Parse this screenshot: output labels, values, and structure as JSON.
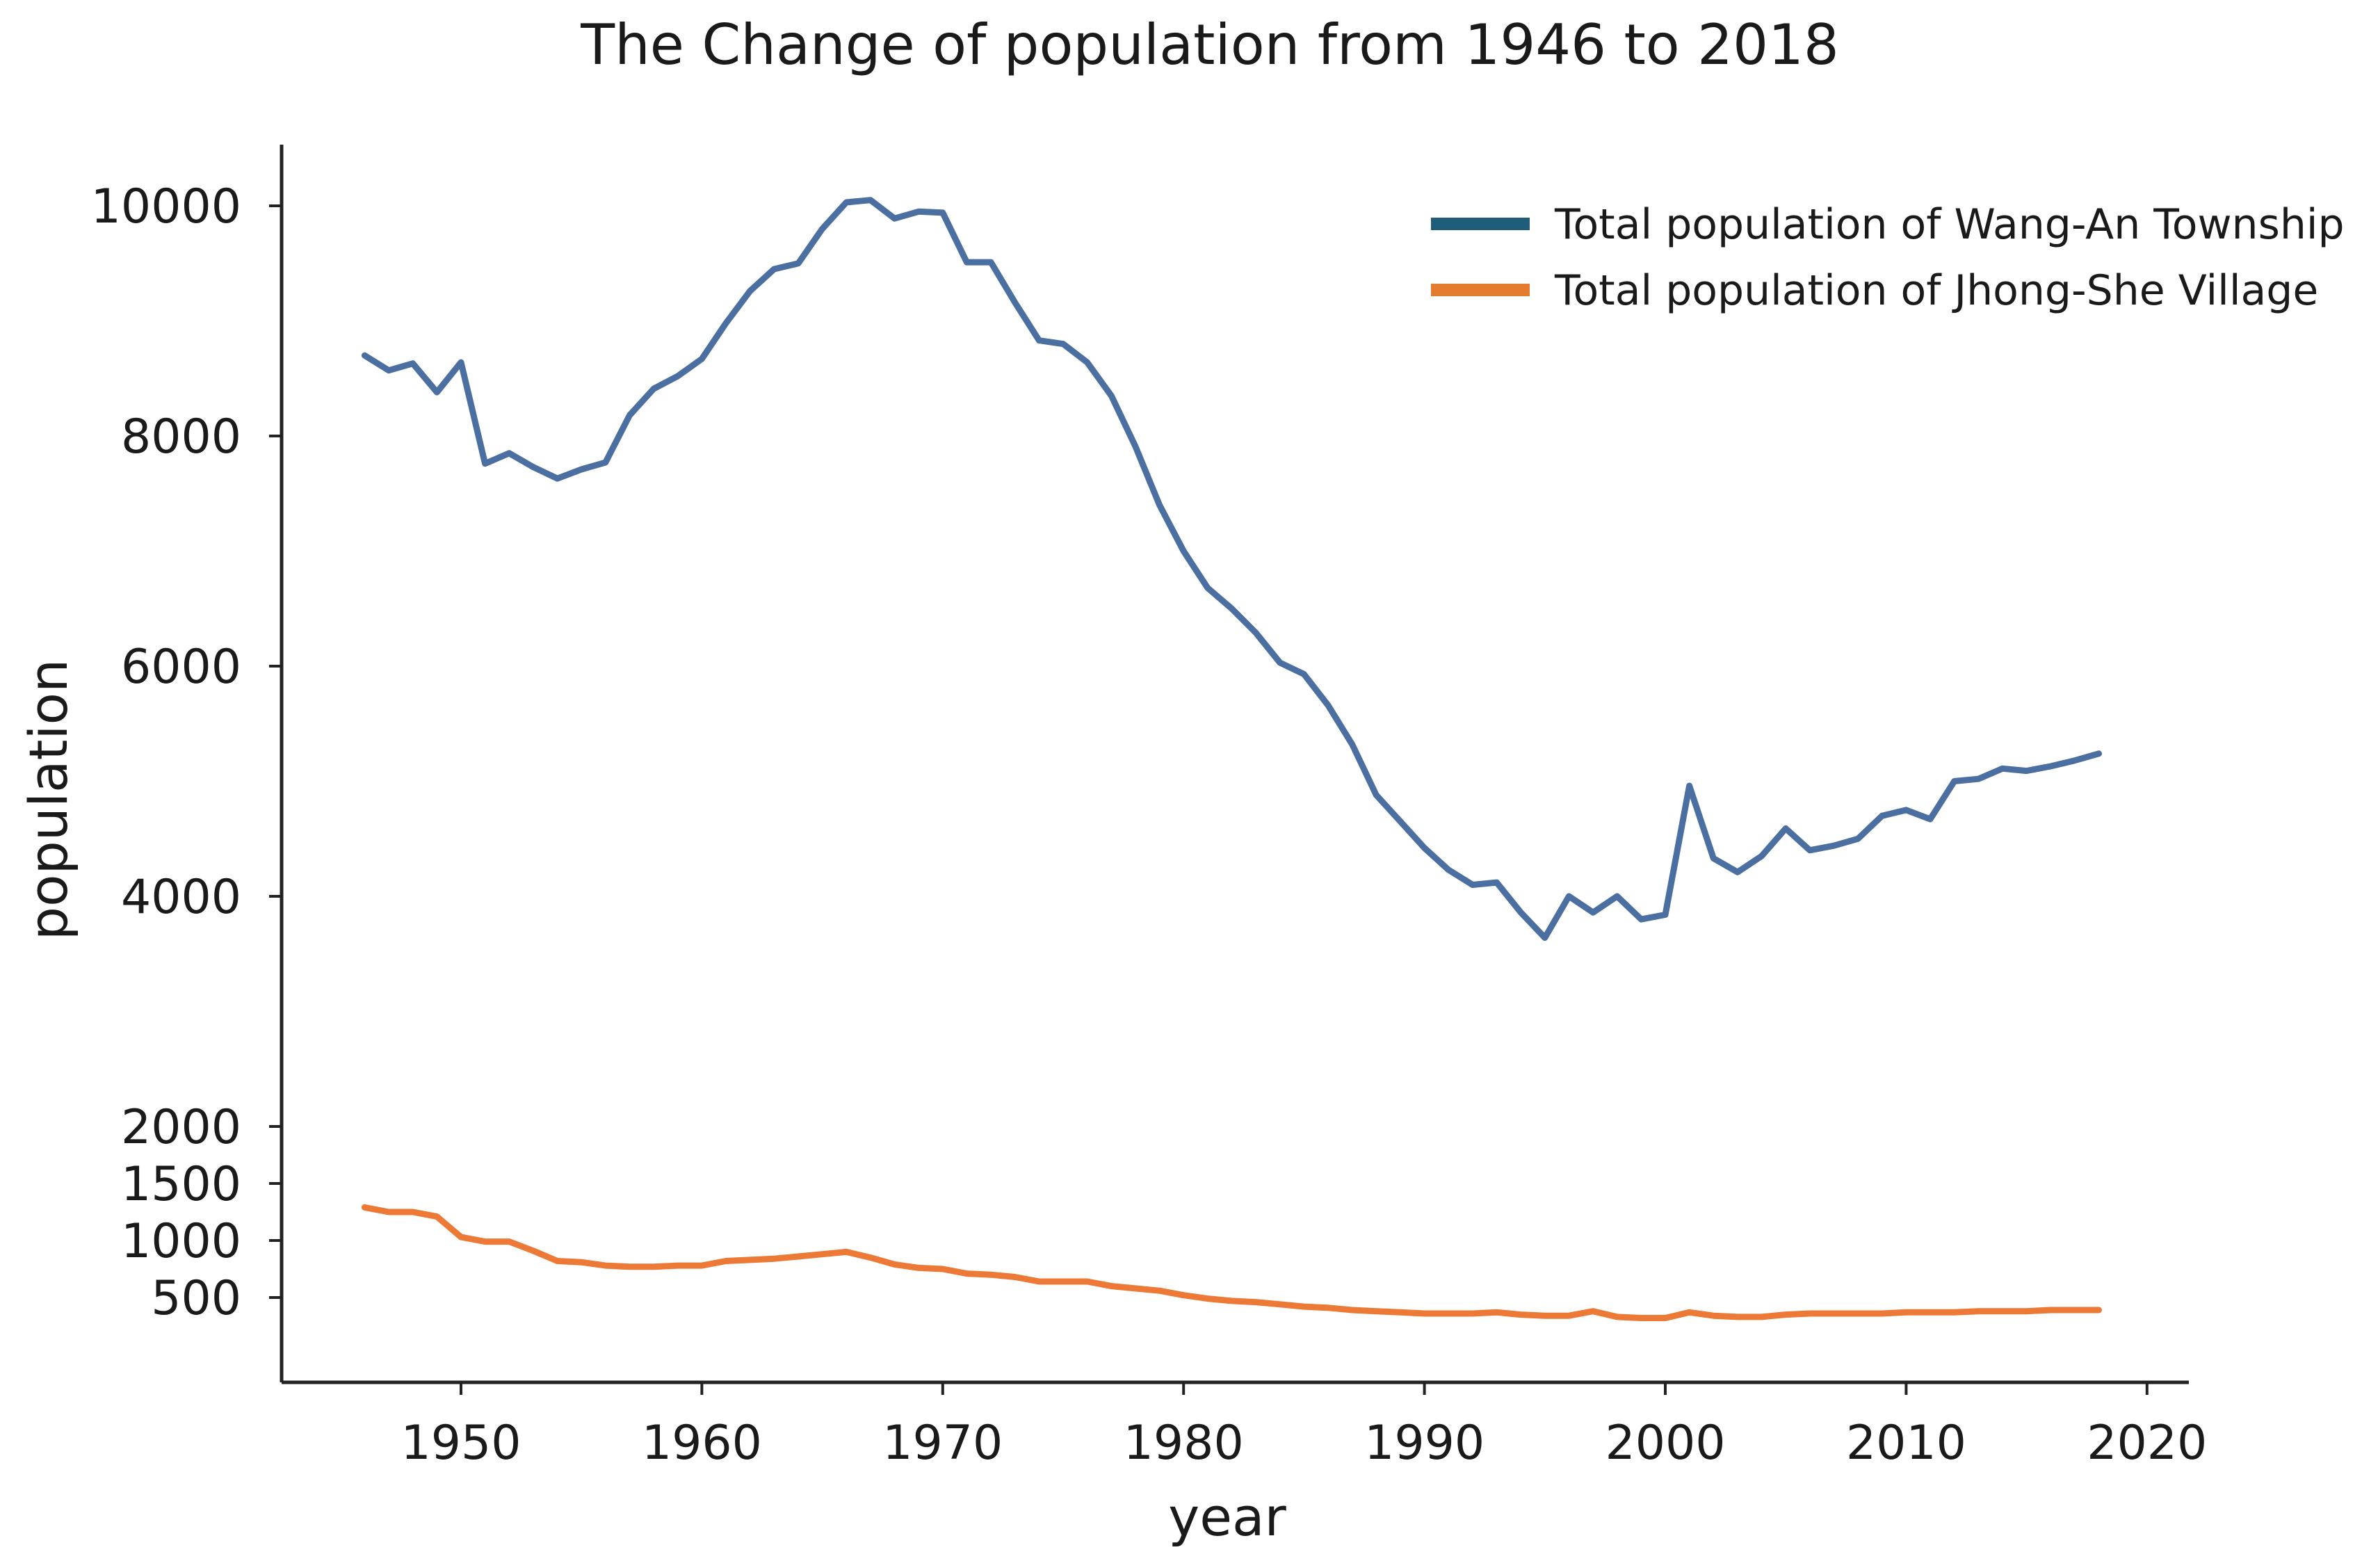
{
  "chart_data": {
    "type": "line",
    "title": "The Change of population from 1946 to 2018",
    "xlabel": "year",
    "ylabel": "population",
    "xlim": [
      1938.5,
      2021.5
    ],
    "ylim": [
      -250,
      10550
    ],
    "x_ticks": [
      1950,
      1960,
      1970,
      1980,
      1990,
      2000,
      2010,
      2020
    ],
    "y_ticks": [
      500,
      1000,
      1500,
      2000,
      4000,
      6000,
      8000,
      10000
    ],
    "grid": false,
    "legend_position": "top-right",
    "x": [
      1946,
      1947,
      1948,
      1949,
      1950,
      1951,
      1952,
      1953,
      1954,
      1955,
      1956,
      1957,
      1958,
      1959,
      1960,
      1961,
      1962,
      1963,
      1964,
      1965,
      1966,
      1967,
      1968,
      1969,
      1970,
      1971,
      1972,
      1973,
      1974,
      1975,
      1976,
      1977,
      1978,
      1979,
      1980,
      1981,
      1982,
      1983,
      1984,
      1985,
      1986,
      1987,
      1988,
      1989,
      1990,
      1991,
      1992,
      1993,
      1994,
      1995,
      1996,
      1997,
      1998,
      1999,
      2000,
      2001,
      2002,
      2003,
      2004,
      2005,
      2006,
      2007,
      2008,
      2009,
      2010,
      2011,
      2012,
      2013,
      2014,
      2015,
      2016,
      2017,
      2018
    ],
    "series": [
      {
        "name": "Total population of Wang-An Township",
        "color": "#4a6fa0",
        "legend_color": "#1f5d79",
        "values": [
          8700,
          8570,
          8630,
          8380,
          8640,
          7760,
          7850,
          7730,
          7630,
          7710,
          7770,
          8180,
          8410,
          8520,
          8670,
          8980,
          9260,
          9450,
          9500,
          9800,
          10030,
          10050,
          9890,
          9950,
          9940,
          9510,
          9510,
          9160,
          8830,
          8800,
          8640,
          8350,
          7910,
          7400,
          7000,
          6680,
          6500,
          6290,
          6030,
          5930,
          5660,
          5320,
          4880,
          4650,
          4420,
          4230,
          4100,
          4120,
          3860,
          3640,
          4000,
          3860,
          4000,
          3800,
          3840,
          4960,
          4330,
          4210,
          4350,
          4590,
          4400,
          4440,
          4500,
          4700,
          4750,
          4670,
          5000,
          5020,
          5110,
          5090,
          5130,
          5180,
          5240
        ]
      },
      {
        "name": "Total population of Jhong-She Village",
        "color": "#ec7a36",
        "legend_color": "#e27b2d",
        "values": [
          1290,
          1250,
          1250,
          1210,
          1030,
          990,
          990,
          910,
          820,
          810,
          780,
          770,
          770,
          780,
          780,
          820,
          830,
          840,
          860,
          880,
          900,
          850,
          790,
          760,
          750,
          710,
          700,
          680,
          640,
          640,
          640,
          600,
          580,
          560,
          520,
          490,
          470,
          460,
          440,
          420,
          410,
          390,
          380,
          370,
          360,
          360,
          360,
          370,
          350,
          340,
          340,
          380,
          330,
          320,
          320,
          370,
          340,
          330,
          330,
          350,
          360,
          360,
          360,
          360,
          370,
          370,
          370,
          380,
          380,
          380,
          390,
          390,
          390
        ]
      }
    ]
  }
}
